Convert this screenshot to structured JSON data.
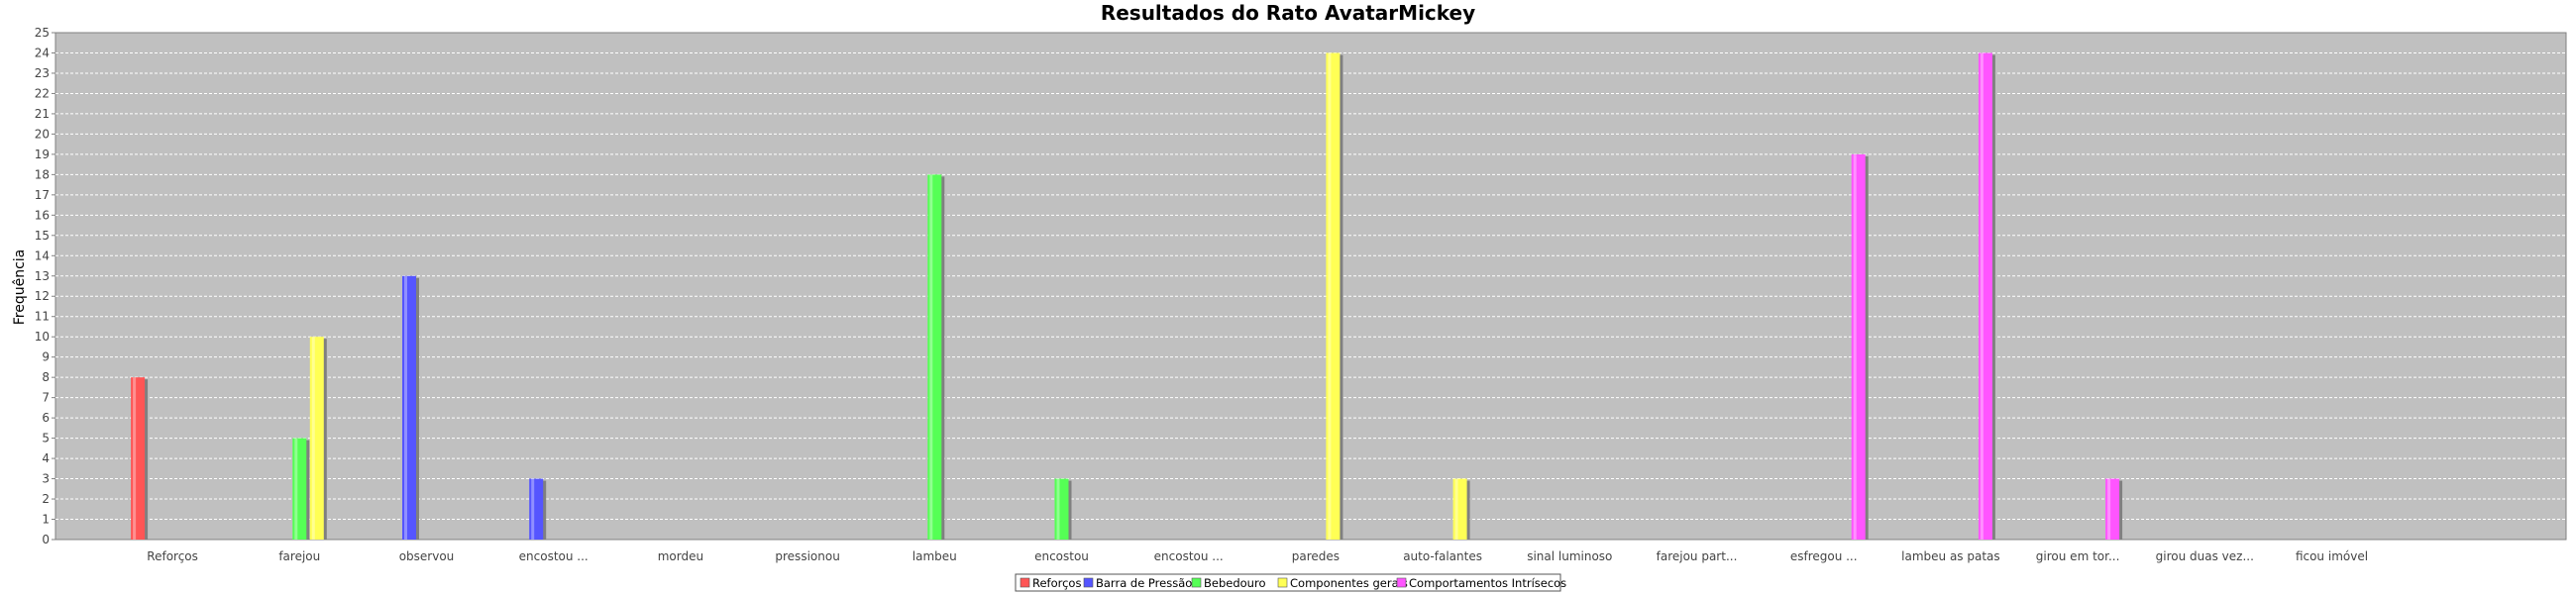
{
  "chart_data": {
    "type": "bar",
    "title": "Resultados do Rato AvatarMickey",
    "xlabel": "",
    "ylabel": "Frequência",
    "ylim": [
      0,
      25
    ],
    "yticks": [
      0,
      1,
      2,
      3,
      4,
      5,
      6,
      7,
      8,
      9,
      10,
      11,
      12,
      13,
      14,
      15,
      16,
      17,
      18,
      19,
      20,
      21,
      22,
      23,
      24,
      25
    ],
    "grid": true,
    "legend_position": "bottom",
    "categories": [
      "Reforços",
      "farejou",
      "observou",
      "encostou ...",
      "mordeu",
      "pressionou",
      "lambeu",
      "encostou",
      "encostou ...",
      "paredes",
      "auto-falantes",
      "sinal luminoso",
      "farejou part...",
      "esfregou ...",
      "lambeu as patas",
      "girou em tor...",
      "girou duas vez...",
      "ficou imóvel"
    ],
    "series": [
      {
        "name": "Reforços",
        "color": "#ff5555",
        "values": [
          8,
          0,
          0,
          0,
          0,
          0,
          0,
          0,
          0,
          0,
          0,
          0,
          0,
          0,
          0,
          0,
          0,
          0
        ]
      },
      {
        "name": "Barra de Pressão",
        "color": "#5555ff",
        "values": [
          0,
          0,
          13,
          3,
          0,
          0,
          0,
          0,
          0,
          0,
          0,
          0,
          0,
          0,
          0,
          0,
          0,
          0
        ]
      },
      {
        "name": "Bebedouro",
        "color": "#55ff55",
        "values": [
          0,
          5,
          0,
          0,
          0,
          0,
          18,
          3,
          0,
          0,
          0,
          0,
          0,
          0,
          0,
          0,
          0,
          0
        ]
      },
      {
        "name": "Componentes gerais",
        "color": "#ffff55",
        "values": [
          0,
          10,
          0,
          0,
          0,
          0,
          0,
          0,
          0,
          24,
          3,
          0,
          0,
          0,
          0,
          0,
          0,
          0
        ]
      },
      {
        "name": "Comportamentos Intrísecos",
        "color": "#ff55ff",
        "values": [
          0,
          0,
          0,
          0,
          0,
          0,
          0,
          0,
          0,
          0,
          0,
          0,
          0,
          19,
          24,
          3,
          0,
          0
        ]
      }
    ]
  }
}
